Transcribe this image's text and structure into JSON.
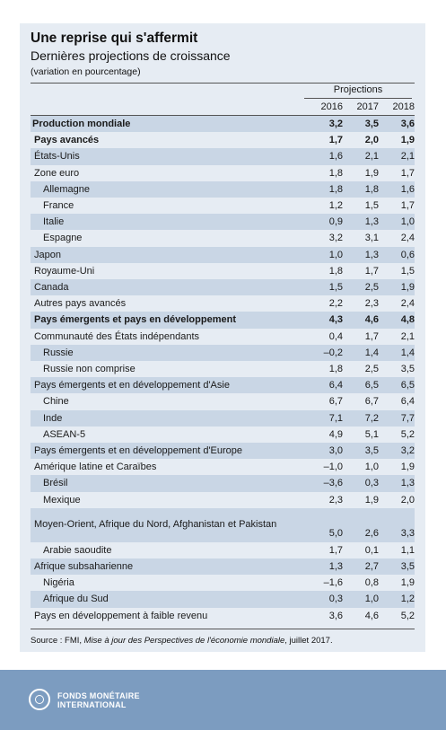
{
  "header": {
    "title": "Une reprise qui s'affermit",
    "subtitle": "Dernières projections de croissance",
    "note": "(variation en pourcentage)",
    "projections_label": "Projections",
    "years": [
      "2016",
      "2017",
      "2018"
    ]
  },
  "rows": [
    {
      "label": "Production mondiale",
      "values": [
        "3,2",
        "3,5",
        "3,6"
      ],
      "bold": true,
      "shade": true,
      "indent": 0
    },
    {
      "label": "Pays avancés",
      "values": [
        "1,7",
        "2,0",
        "1,9"
      ],
      "bold": true,
      "shade": false,
      "indent": 1
    },
    {
      "label": "États-Unis",
      "values": [
        "1,6",
        "2,1",
        "2,1"
      ],
      "bold": false,
      "shade": true,
      "indent": 1
    },
    {
      "label": "Zone euro",
      "values": [
        "1,8",
        "1,9",
        "1,7"
      ],
      "bold": false,
      "shade": false,
      "indent": 1
    },
    {
      "label": "Allemagne",
      "values": [
        "1,8",
        "1,8",
        "1,6"
      ],
      "bold": false,
      "shade": true,
      "indent": 2
    },
    {
      "label": "France",
      "values": [
        "1,2",
        "1,5",
        "1,7"
      ],
      "bold": false,
      "shade": false,
      "indent": 2
    },
    {
      "label": "Italie",
      "values": [
        "0,9",
        "1,3",
        "1,0"
      ],
      "bold": false,
      "shade": true,
      "indent": 2
    },
    {
      "label": "Espagne",
      "values": [
        "3,2",
        "3,1",
        "2,4"
      ],
      "bold": false,
      "shade": false,
      "indent": 2
    },
    {
      "label": "Japon",
      "values": [
        "1,0",
        "1,3",
        "0,6"
      ],
      "bold": false,
      "shade": true,
      "indent": 1
    },
    {
      "label": "Royaume-Uni",
      "values": [
        "1,8",
        "1,7",
        "1,5"
      ],
      "bold": false,
      "shade": false,
      "indent": 1
    },
    {
      "label": "Canada",
      "values": [
        "1,5",
        "2,5",
        "1,9"
      ],
      "bold": false,
      "shade": true,
      "indent": 1
    },
    {
      "label": "Autres pays avancés",
      "values": [
        "2,2",
        "2,3",
        "2,4"
      ],
      "bold": false,
      "shade": false,
      "indent": 1
    },
    {
      "label": "Pays émergents et pays en développement",
      "values": [
        "4,3",
        "4,6",
        "4,8"
      ],
      "bold": true,
      "shade": true,
      "indent": 1
    },
    {
      "label": "Communauté des États indépendants",
      "values": [
        "0,4",
        "1,7",
        "2,1"
      ],
      "bold": false,
      "shade": false,
      "indent": 1
    },
    {
      "label": "Russie",
      "values": [
        "–0,2",
        "1,4",
        "1,4"
      ],
      "bold": false,
      "shade": true,
      "indent": 2
    },
    {
      "label": "Russie non comprise",
      "values": [
        "1,8",
        "2,5",
        "3,5"
      ],
      "bold": false,
      "shade": false,
      "indent": 2
    },
    {
      "label": "Pays émergents et en développement d'Asie",
      "values": [
        "6,4",
        "6,5",
        "6,5"
      ],
      "bold": false,
      "shade": true,
      "indent": 1
    },
    {
      "label": "Chine",
      "values": [
        "6,7",
        "6,7",
        "6,4"
      ],
      "bold": false,
      "shade": false,
      "indent": 2
    },
    {
      "label": "Inde",
      "values": [
        "7,1",
        "7,2",
        "7,7"
      ],
      "bold": false,
      "shade": true,
      "indent": 2
    },
    {
      "label": "ASEAN-5",
      "values": [
        "4,9",
        "5,1",
        "5,2"
      ],
      "bold": false,
      "shade": false,
      "indent": 2
    },
    {
      "label": "Pays émergents et en développement d'Europe",
      "values": [
        "3,0",
        "3,5",
        "3,2"
      ],
      "bold": false,
      "shade": true,
      "indent": 1
    },
    {
      "label": "Amérique latine et Caraïbes",
      "values": [
        "–1,0",
        "1,0",
        "1,9"
      ],
      "bold": false,
      "shade": false,
      "indent": 1
    },
    {
      "label": "Brésil",
      "values": [
        "–3,6",
        "0,3",
        "1,3"
      ],
      "bold": false,
      "shade": true,
      "indent": 2
    },
    {
      "label": "Mexique",
      "values": [
        "2,3",
        "1,9",
        "2,0"
      ],
      "bold": false,
      "shade": false,
      "indent": 2
    },
    {
      "label": "Moyen-Orient, Afrique du Nord, Afghanistan et Pakistan",
      "values": [
        "5,0",
        "2,6",
        "3,3"
      ],
      "bold": false,
      "shade": true,
      "indent": 1,
      "tall": true
    },
    {
      "label": "Arabie saoudite",
      "values": [
        "1,7",
        "0,1",
        "1,1"
      ],
      "bold": false,
      "shade": false,
      "indent": 2
    },
    {
      "label": "Afrique subsaharienne",
      "values": [
        "1,3",
        "2,7",
        "3,5"
      ],
      "bold": false,
      "shade": true,
      "indent": 1
    },
    {
      "label": "Nigéria",
      "values": [
        "–1,6",
        "0,8",
        "1,9"
      ],
      "bold": false,
      "shade": false,
      "indent": 2
    },
    {
      "label": "Afrique du Sud",
      "values": [
        "0,3",
        "1,0",
        "1,2"
      ],
      "bold": false,
      "shade": true,
      "indent": 2
    },
    {
      "label": "Pays en développement à faible revenu",
      "values": [
        "3,6",
        "4,6",
        "5,2"
      ],
      "bold": false,
      "shade": false,
      "indent": 1
    }
  ],
  "source": {
    "prefix": "Source : FMI, ",
    "publication": "Mise à jour des Perspectives de l'économie mondiale",
    "suffix": ", juillet 2017."
  },
  "footer": {
    "line1": "FONDS MONÉTAIRE",
    "line2": "INTERNATIONAL"
  }
}
